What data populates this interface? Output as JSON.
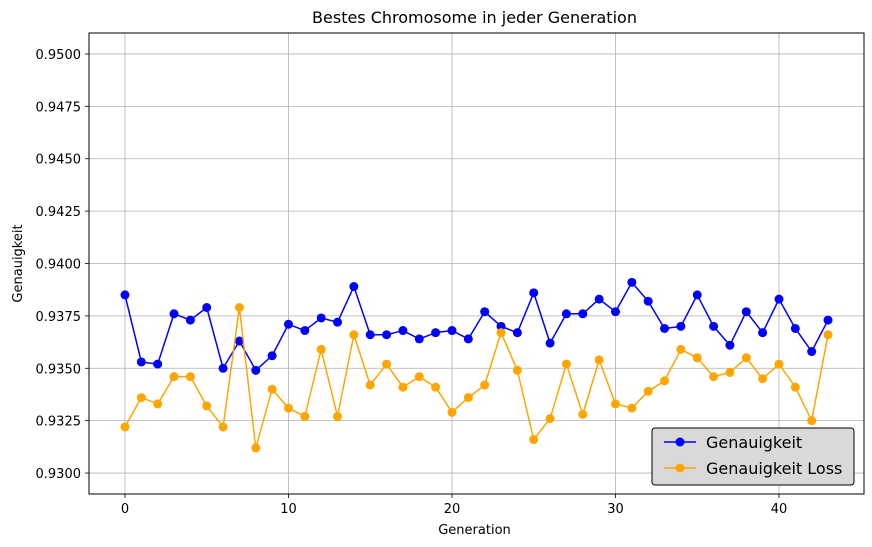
{
  "chart_data": {
    "type": "line",
    "title": "Bestes Chromosome in jeder Generation",
    "xlabel": "Generation",
    "ylabel": "Genauigkeit",
    "xlim": [
      -2.2,
      45.2
    ],
    "ylim": [
      0.929,
      0.951
    ],
    "xticks": [
      "0",
      "10",
      "20",
      "30",
      "40"
    ],
    "xtick_values": [
      0,
      10,
      20,
      30,
      40
    ],
    "yticks": [
      "0.9300",
      "0.9325",
      "0.9350",
      "0.9375",
      "0.9400",
      "0.9425",
      "0.9450",
      "0.9475",
      "0.9500"
    ],
    "ytick_values": [
      0.93,
      0.9325,
      0.935,
      0.9375,
      0.94,
      0.9425,
      0.945,
      0.9475,
      0.95
    ],
    "grid": true,
    "legend_position": "bottom-right",
    "x": [
      0,
      1,
      2,
      3,
      4,
      5,
      6,
      7,
      8,
      9,
      10,
      11,
      12,
      13,
      14,
      15,
      16,
      17,
      18,
      19,
      20,
      21,
      22,
      23,
      24,
      25,
      26,
      27,
      28,
      29,
      30,
      31,
      32,
      33,
      34,
      35,
      36,
      37,
      38,
      39,
      40,
      41,
      42,
      43
    ],
    "series": [
      {
        "name": "Genauigkeit",
        "color": "#0000ff",
        "values": [
          0.9385,
          0.9353,
          0.9352,
          0.9376,
          0.9373,
          0.9379,
          0.935,
          0.9363,
          0.9349,
          0.9356,
          0.9371,
          0.9368,
          0.9374,
          0.9372,
          0.9389,
          0.9366,
          0.9366,
          0.9368,
          0.9364,
          0.9367,
          0.9368,
          0.9364,
          0.9377,
          0.937,
          0.9367,
          0.9386,
          0.9362,
          0.9376,
          0.9376,
          0.9383,
          0.9377,
          0.9391,
          0.9382,
          0.9369,
          0.937,
          0.9385,
          0.937,
          0.9361,
          0.9377,
          0.9367,
          0.9383,
          0.9369,
          0.9358,
          0.9373
        ]
      },
      {
        "name": "Genauigkeit Loss",
        "color": "#ffa500",
        "values": [
          0.9322,
          0.9336,
          0.9333,
          0.9346,
          0.9346,
          0.9332,
          0.9322,
          0.9379,
          0.9312,
          0.934,
          0.9331,
          0.9327,
          0.9359,
          0.9327,
          0.9366,
          0.9342,
          0.9352,
          0.9341,
          0.9346,
          0.9341,
          0.9329,
          0.9336,
          0.9342,
          0.9367,
          0.9349,
          0.9316,
          0.9326,
          0.9352,
          0.9328,
          0.9354,
          0.9333,
          0.9331,
          0.9339,
          0.9344,
          0.9359,
          0.9355,
          0.9346,
          0.9348,
          0.9355,
          0.9345,
          0.9352,
          0.9341,
          0.9325,
          0.9366
        ]
      }
    ]
  }
}
